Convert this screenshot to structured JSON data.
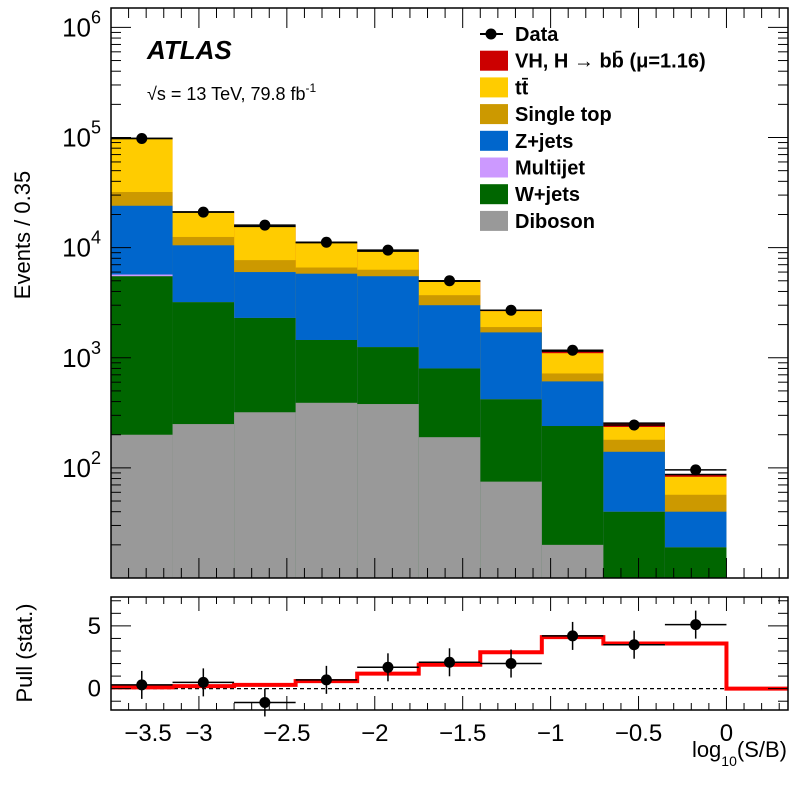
{
  "chart_data": {
    "type": "stacked-histogram",
    "colors": {
      "vh": "#cc0000",
      "ttbar": "#ffcc00",
      "stop": "#cc9900",
      "zjets": "#0066cc",
      "multijet": "#cc99ff",
      "wjets": "#006600",
      "diboson": "#999999",
      "data": "#000000",
      "pull_fit": "#ff0000"
    },
    "experiment": "ATLAS",
    "energy_label": "√s = 13 TeV, 79.8 fb",
    "energy_label_sup": "-1",
    "ylabel": "Events / 0.35",
    "xlabel_main": "log",
    "xlabel_sub": "10",
    "xlabel_tail": "(S/B)",
    "pull_ylabel": "Pull (stat.)",
    "main_yscale": "log",
    "ylim": [
      10,
      1500000
    ],
    "xlim": [
      -3.5,
      0.35
    ],
    "y_ticks": [
      {
        "value": 100,
        "base": "10",
        "exp": "2"
      },
      {
        "value": 1000,
        "base": "10",
        "exp": "3"
      },
      {
        "value": 10000,
        "base": "10",
        "exp": "4"
      },
      {
        "value": 100000,
        "base": "10",
        "exp": "5"
      },
      {
        "value": 1000000,
        "base": "10",
        "exp": "6"
      }
    ],
    "x_ticks": [
      {
        "value": -3.5,
        "label": "−3.5"
      },
      {
        "value": -3.0,
        "label": "−3"
      },
      {
        "value": -2.5,
        "label": "−2.5"
      },
      {
        "value": -2.0,
        "label": "−2"
      },
      {
        "value": -1.5,
        "label": "−1.5"
      },
      {
        "value": -1.0,
        "label": "−1"
      },
      {
        "value": -0.5,
        "label": "−0.5"
      },
      {
        "value": 0.0,
        "label": "0"
      }
    ],
    "pull_ylim": [
      -1.7,
      7.3
    ],
    "pull_ticks": [
      {
        "value": 0,
        "label": "0"
      },
      {
        "value": 5,
        "label": "5"
      }
    ],
    "bin_edges": [
      -3.5,
      -3.15,
      -2.8,
      -2.45,
      -2.1,
      -1.75,
      -1.4,
      -1.05,
      -0.7,
      -0.35,
      0.0
    ],
    "legend": [
      {
        "key": "data",
        "label": "Data",
        "marker": "point"
      },
      {
        "key": "vh",
        "label": "VH, H → bb̄ (μ=1.16)",
        "marker": "box"
      },
      {
        "key": "ttbar",
        "label": "tt̄",
        "marker": "box"
      },
      {
        "key": "stop",
        "label": "Single top",
        "marker": "box"
      },
      {
        "key": "zjets",
        "label": "Z+jets",
        "marker": "box"
      },
      {
        "key": "multijet",
        "label": "Multijet",
        "marker": "box"
      },
      {
        "key": "wjets",
        "label": "W+jets",
        "marker": "box"
      },
      {
        "key": "diboson",
        "label": "Diboson",
        "marker": "box"
      }
    ],
    "stack_cumulative": {
      "diboson": [
        200,
        250,
        320,
        390,
        380,
        190,
        75,
        20,
        10,
        10
      ],
      "wjets": [
        5500,
        3200,
        2300,
        1450,
        1250,
        800,
        420,
        240,
        40,
        19
      ],
      "multijet": [
        5700,
        3200,
        2300,
        1450,
        1250,
        800,
        420,
        240,
        40,
        19
      ],
      "zjets": [
        24000,
        10500,
        6000,
        5800,
        5500,
        3000,
        1700,
        610,
        140,
        40
      ],
      "stop": [
        32000,
        12500,
        7700,
        6600,
        6300,
        3700,
        1900,
        720,
        180,
        57
      ],
      "ttbar": [
        98000,
        21000,
        15500,
        11000,
        9200,
        4900,
        2650,
        1100,
        235,
        83
      ],
      "vh": [
        98300,
        21100,
        15600,
        11100,
        9300,
        4950,
        2700,
        1150,
        255,
        87
      ]
    },
    "data_points": {
      "x": [
        -3.325,
        -2.975,
        -2.625,
        -2.275,
        -1.925,
        -1.575,
        -1.225,
        -0.875,
        -0.525,
        -0.175
      ],
      "y": [
        98000,
        21000,
        16000,
        11200,
        9500,
        5000,
        2700,
        1170,
        245,
        96
      ]
    },
    "pull_fit": {
      "edges": [
        -3.5,
        -3.15,
        -2.8,
        -2.45,
        -2.1,
        -1.75,
        -1.4,
        -1.05,
        -0.7,
        -0.35,
        0.0,
        0.35
      ],
      "values": [
        0.1,
        0.2,
        0.3,
        0.6,
        1.2,
        1.9,
        2.9,
        4.1,
        3.6,
        3.6,
        0.0
      ]
    },
    "pull_points": {
      "x": [
        -3.325,
        -2.975,
        -2.625,
        -2.275,
        -1.925,
        -1.575,
        -1.225,
        -0.875,
        -0.525,
        -0.175
      ],
      "y": [
        0.3,
        0.5,
        -1.1,
        0.7,
        1.7,
        2.1,
        2.0,
        4.2,
        3.5,
        5.1
      ]
    }
  }
}
